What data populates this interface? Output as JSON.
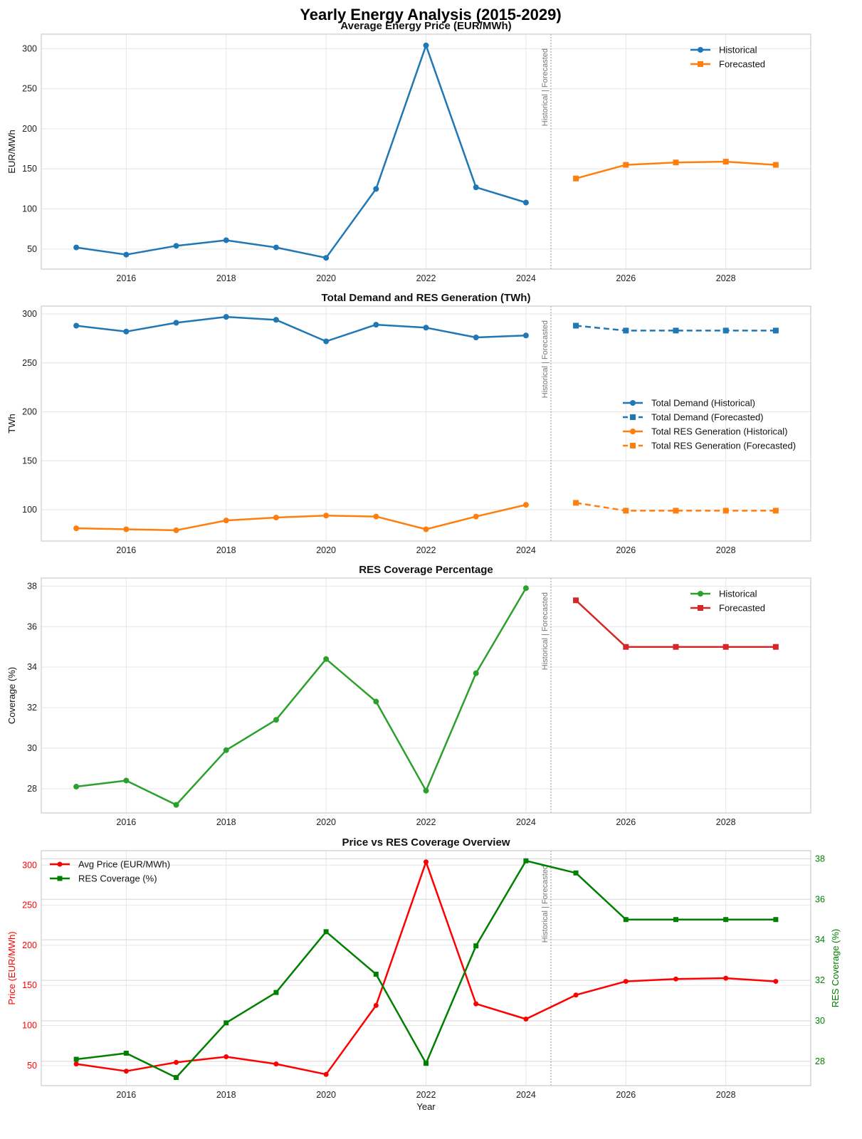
{
  "title": "Yearly Energy Analysis (2015-2029)",
  "colors": {
    "blue": "#1f77b4",
    "orange": "#ff7f0e",
    "green": "#2ca02c",
    "red": "#d62728",
    "pure_red": "#ff0000",
    "dark_green": "#008000",
    "grid": "#e6e6e6",
    "axes_border": "#cccccc",
    "divider": "#999999"
  },
  "divider_label": "Historical | Forecasted",
  "chart_data": [
    {
      "type": "line",
      "title": "Average Energy Price (EUR/MWh)",
      "xlabel": "",
      "ylabel": "EUR/MWh",
      "xlim": [
        2014.3,
        2029.7
      ],
      "ylim": [
        25,
        318
      ],
      "xticks": [
        2016,
        2018,
        2020,
        2022,
        2024,
        2026,
        2028
      ],
      "yticks": [
        50,
        100,
        150,
        200,
        250,
        300
      ],
      "grid": true,
      "legend": "top-right",
      "divider_x": 2024.5,
      "series": [
        {
          "name": "Historical",
          "color": "blue",
          "marker": "circle",
          "dash": false,
          "x": [
            2015,
            2016,
            2017,
            2018,
            2019,
            2020,
            2021,
            2022,
            2023,
            2024
          ],
          "y": [
            52,
            43,
            54,
            61,
            52,
            39,
            125,
            304,
            127,
            108
          ]
        },
        {
          "name": "Forecasted",
          "color": "orange",
          "marker": "square",
          "dash": false,
          "x": [
            2025,
            2026,
            2027,
            2028,
            2029
          ],
          "y": [
            138,
            155,
            158,
            159,
            155
          ]
        }
      ]
    },
    {
      "type": "line",
      "title": "Total Demand and RES Generation (TWh)",
      "xlabel": "",
      "ylabel": "TWh",
      "xlim": [
        2014.3,
        2029.7
      ],
      "ylim": [
        68,
        308
      ],
      "xticks": [
        2016,
        2018,
        2020,
        2022,
        2024,
        2026,
        2028
      ],
      "yticks": [
        100,
        150,
        200,
        250,
        300
      ],
      "grid": true,
      "legend": "center-right",
      "divider_x": 2024.5,
      "series": [
        {
          "name": "Total Demand (Historical)",
          "color": "blue",
          "marker": "circle",
          "dash": false,
          "x": [
            2015,
            2016,
            2017,
            2018,
            2019,
            2020,
            2021,
            2022,
            2023,
            2024
          ],
          "y": [
            288,
            282,
            291,
            297,
            294,
            272,
            289,
            286,
            276,
            278
          ]
        },
        {
          "name": "Total Demand (Forecasted)",
          "color": "blue",
          "marker": "square",
          "dash": true,
          "x": [
            2025,
            2026,
            2027,
            2028,
            2029
          ],
          "y": [
            288,
            283,
            283,
            283,
            283
          ]
        },
        {
          "name": "Total RES Generation (Historical)",
          "color": "orange",
          "marker": "circle",
          "dash": false,
          "x": [
            2015,
            2016,
            2017,
            2018,
            2019,
            2020,
            2021,
            2022,
            2023,
            2024
          ],
          "y": [
            81,
            80,
            79,
            89,
            92,
            94,
            93,
            80,
            93,
            105
          ]
        },
        {
          "name": "Total RES Generation (Forecasted)",
          "color": "orange",
          "marker": "square",
          "dash": true,
          "x": [
            2025,
            2026,
            2027,
            2028,
            2029
          ],
          "y": [
            107,
            99,
            99,
            99,
            99
          ]
        }
      ]
    },
    {
      "type": "line",
      "title": "RES Coverage Percentage",
      "xlabel": "",
      "ylabel": "Coverage (%)",
      "xlim": [
        2014.3,
        2029.7
      ],
      "ylim": [
        26.8,
        38.4
      ],
      "xticks": [
        2016,
        2018,
        2020,
        2022,
        2024,
        2026,
        2028
      ],
      "yticks": [
        28,
        30,
        32,
        34,
        36,
        38
      ],
      "grid": true,
      "legend": "top-right",
      "divider_x": 2024.5,
      "series": [
        {
          "name": "Historical",
          "color": "green",
          "marker": "circle",
          "dash": false,
          "x": [
            2015,
            2016,
            2017,
            2018,
            2019,
            2020,
            2021,
            2022,
            2023,
            2024
          ],
          "y": [
            28.1,
            28.4,
            27.2,
            29.9,
            31.4,
            34.4,
            32.3,
            27.9,
            33.7,
            37.9
          ]
        },
        {
          "name": "Forecasted",
          "color": "red",
          "marker": "square",
          "dash": false,
          "x": [
            2025,
            2026,
            2027,
            2028,
            2029
          ],
          "y": [
            37.3,
            35.0,
            35.0,
            35.0,
            35.0
          ]
        }
      ]
    },
    {
      "type": "line",
      "title": "Price vs RES Coverage Overview",
      "xlabel": "Year",
      "ylabel": "Price (EUR/MWh)",
      "ylabel_right": "RES Coverage (%)",
      "xlim": [
        2014.3,
        2029.7
      ],
      "ylim": [
        25,
        318
      ],
      "ylim_right": [
        26.8,
        38.4
      ],
      "xticks": [
        2016,
        2018,
        2020,
        2022,
        2024,
        2026,
        2028
      ],
      "yticks": [
        50,
        100,
        150,
        200,
        250,
        300
      ],
      "yticks_right": [
        28,
        30,
        32,
        34,
        36,
        38
      ],
      "grid": true,
      "legend": "top-left",
      "divider_x": 2024.5,
      "series": [
        {
          "name": "Avg Price (EUR/MWh)",
          "color": "pure_red",
          "marker": "circle",
          "dash": false,
          "axis": "left",
          "x": [
            2015,
            2016,
            2017,
            2018,
            2019,
            2020,
            2021,
            2022,
            2023,
            2024,
            2025,
            2026,
            2027,
            2028,
            2029
          ],
          "y": [
            52,
            43,
            54,
            61,
            52,
            39,
            125,
            304,
            127,
            108,
            138,
            155,
            158,
            159,
            155
          ]
        },
        {
          "name": "RES Coverage (%)",
          "color": "dark_green",
          "marker": "square",
          "dash": false,
          "axis": "right",
          "x": [
            2015,
            2016,
            2017,
            2018,
            2019,
            2020,
            2021,
            2022,
            2023,
            2024,
            2025,
            2026,
            2027,
            2028,
            2029
          ],
          "y": [
            28.1,
            28.4,
            27.2,
            29.9,
            31.4,
            34.4,
            32.3,
            27.9,
            33.7,
            37.9,
            37.3,
            35.0,
            35.0,
            35.0,
            35.0
          ]
        }
      ]
    }
  ]
}
